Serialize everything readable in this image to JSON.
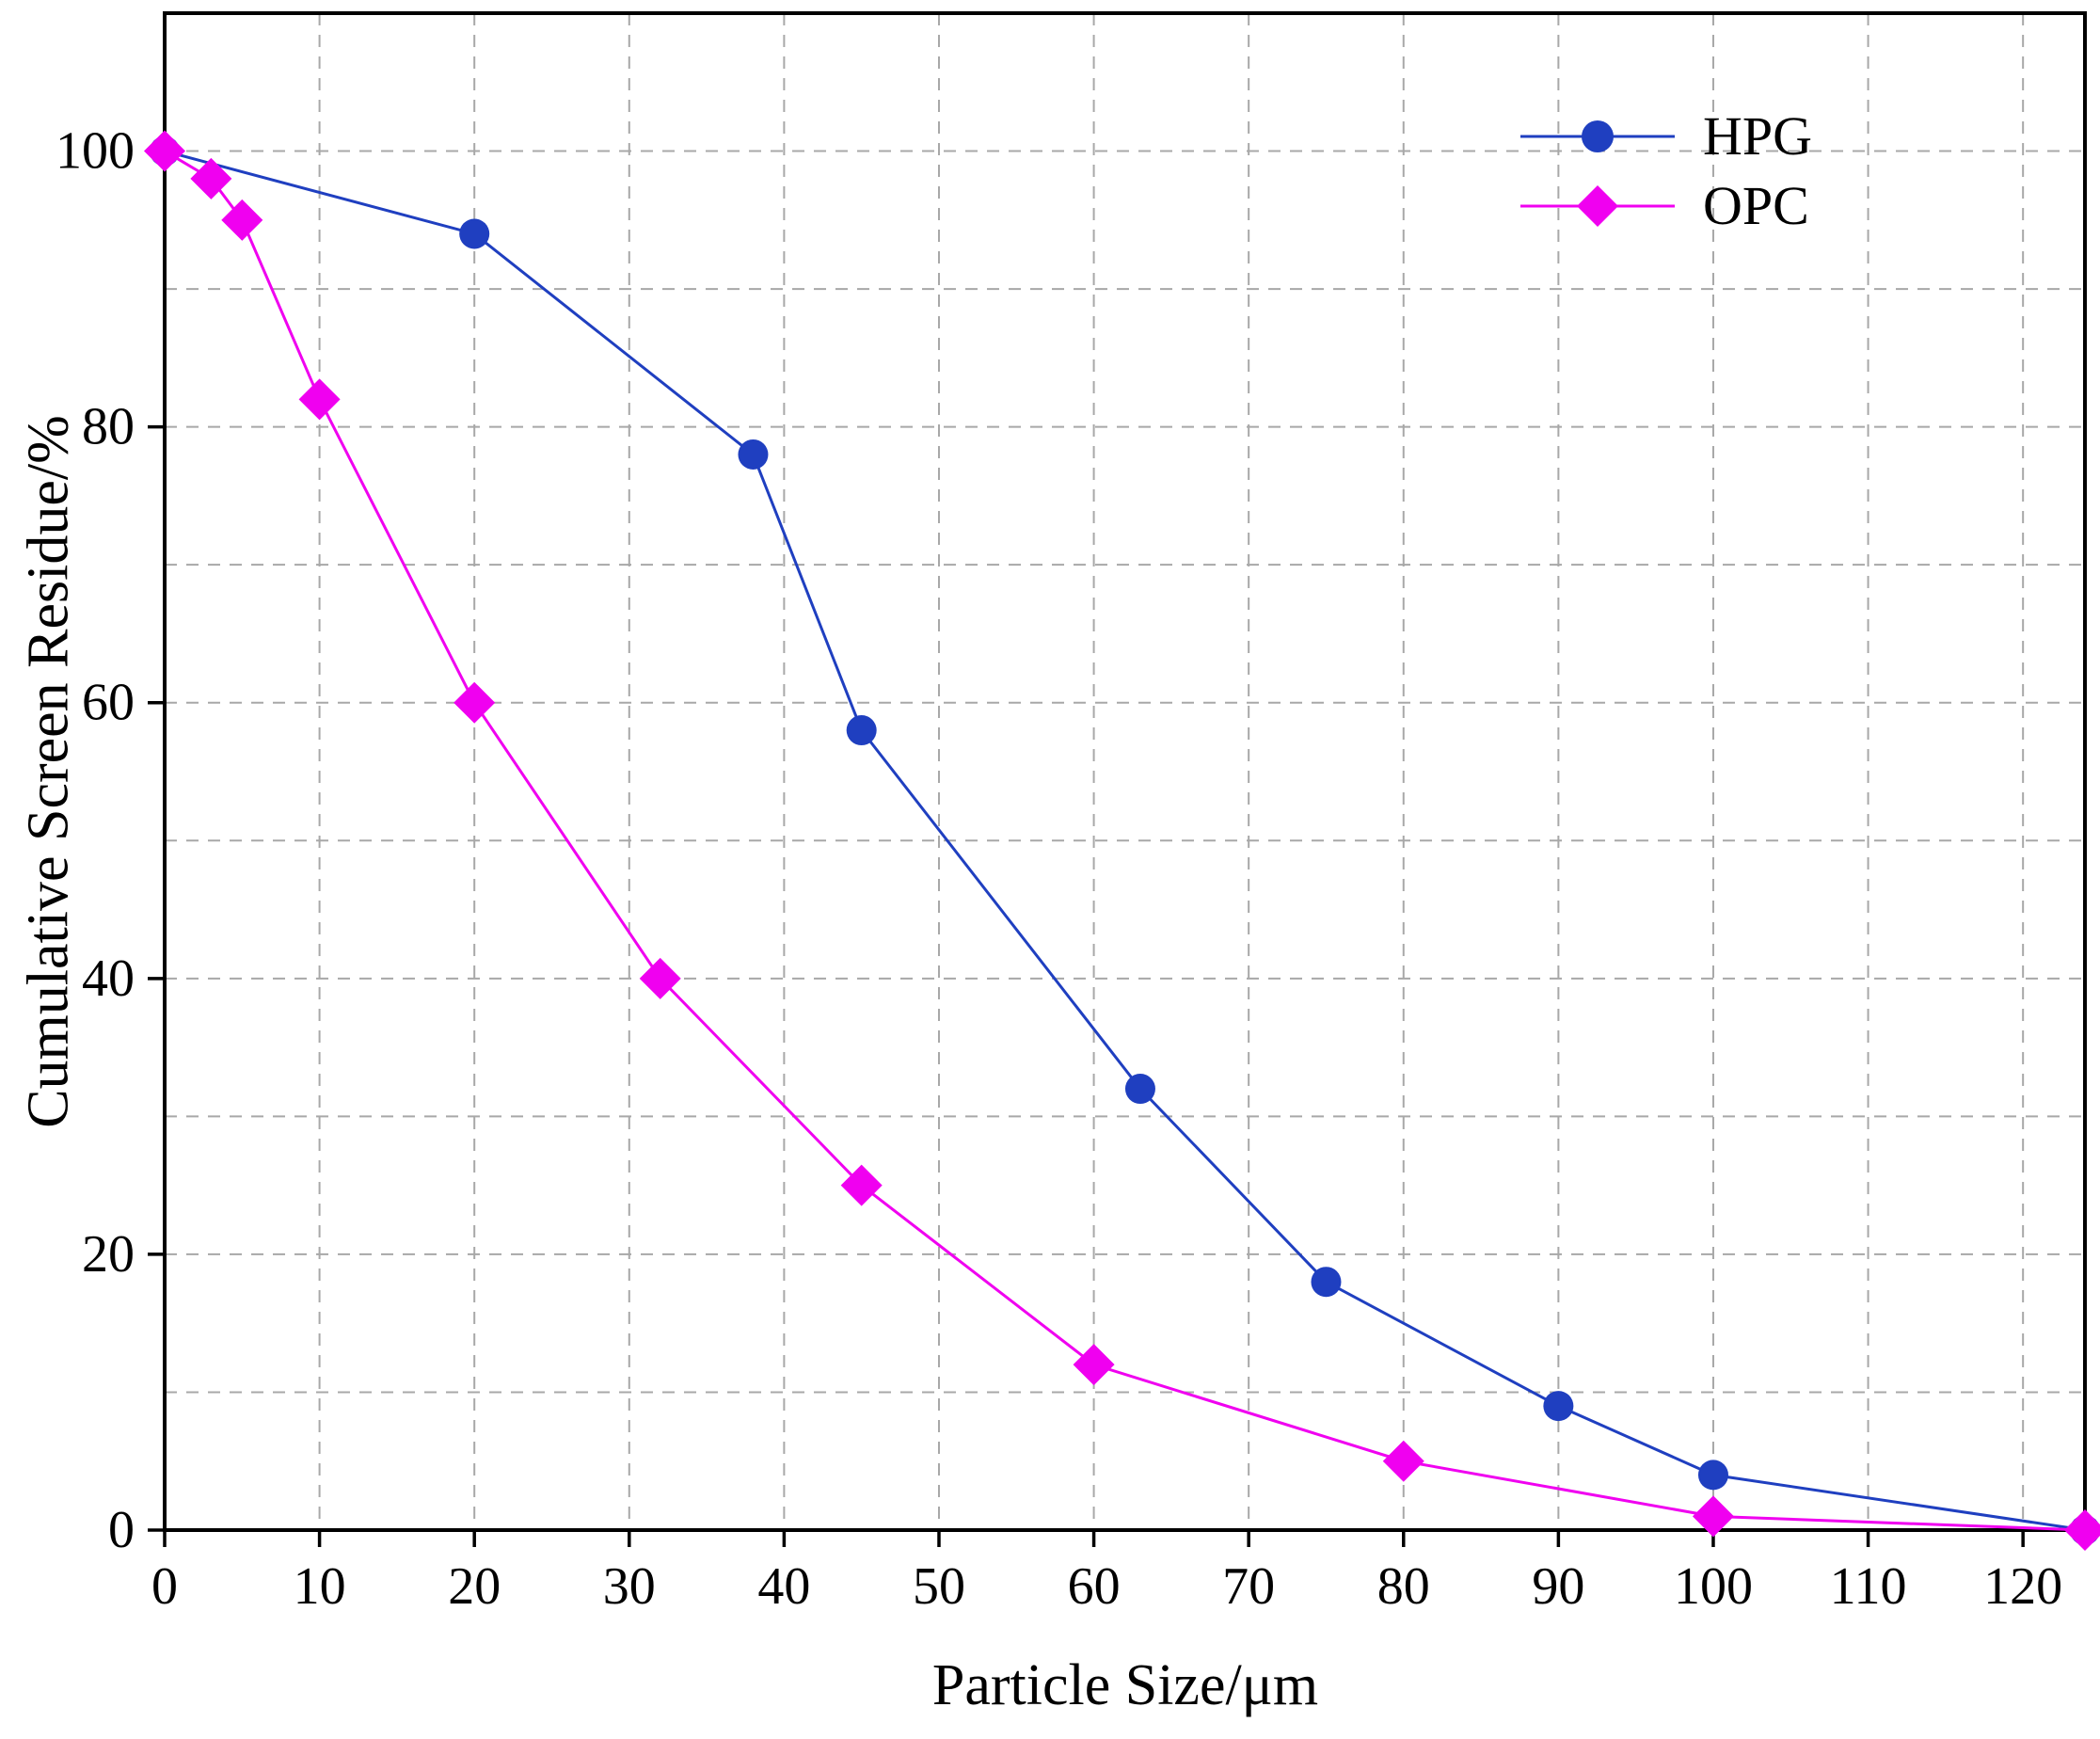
{
  "chart_data": {
    "type": "line",
    "title": "",
    "xlabel": "Particle Size/μm",
    "ylabel": "Cumulative Screen Residue/%",
    "xlim": [
      0,
      124
    ],
    "ylim": [
      0,
      110
    ],
    "x_ticks": [
      0,
      10,
      20,
      30,
      40,
      50,
      60,
      70,
      80,
      90,
      100,
      110,
      120
    ],
    "y_ticks": [
      0,
      20,
      40,
      60,
      80,
      100
    ],
    "x_grid": [
      10,
      20,
      30,
      40,
      50,
      60,
      70,
      80,
      90,
      100,
      110,
      120
    ],
    "y_grid": [
      10,
      20,
      30,
      40,
      50,
      60,
      70,
      80,
      90,
      100
    ],
    "grid": true,
    "grid_style": "dashed",
    "legend_position": "top-right",
    "series": [
      {
        "name": "HPG",
        "color": "#1f3fc0",
        "marker": "circle",
        "x": [
          0,
          20,
          38,
          45,
          63,
          75,
          90,
          100,
          124
        ],
        "y": [
          100,
          94,
          78,
          58,
          32,
          18,
          9,
          4,
          0
        ]
      },
      {
        "name": "OPC",
        "color": "#f000f0",
        "marker": "diamond",
        "x": [
          0,
          3,
          5,
          10,
          20,
          32,
          45,
          60,
          80,
          100,
          124
        ],
        "y": [
          100,
          98,
          95,
          82,
          60,
          40,
          25,
          12,
          5,
          1,
          0
        ]
      }
    ]
  }
}
